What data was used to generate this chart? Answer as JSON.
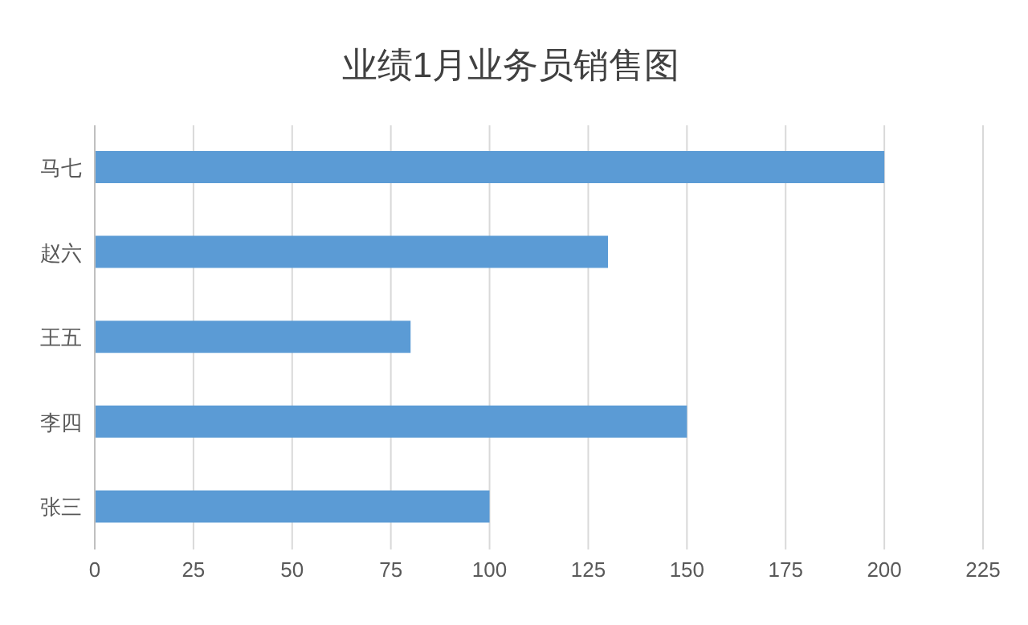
{
  "chart_data": {
    "type": "bar",
    "orientation": "horizontal",
    "title": "业绩1月业务员销售图",
    "categories": [
      "马七",
      "赵六",
      "王五",
      "李四",
      "张三"
    ],
    "values": [
      200,
      130,
      80,
      150,
      100
    ],
    "color": "#5b9bd5",
    "xlim": [
      0,
      225
    ],
    "xticks": [
      0,
      25,
      50,
      75,
      100,
      125,
      150,
      175,
      200,
      225
    ],
    "grid": "x"
  }
}
